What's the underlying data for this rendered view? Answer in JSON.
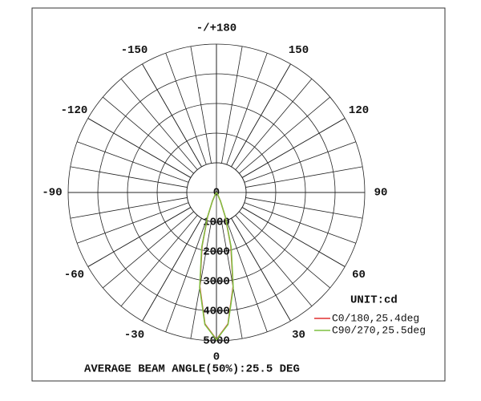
{
  "chart_data": {
    "type": "polar",
    "unit_label": "UNIT:cd",
    "footer": "AVERAGE BEAM ANGLE(50%):25.5 DEG",
    "x": [
      -40,
      -35,
      -30,
      -25,
      -20,
      -15,
      -10,
      -5,
      0,
      5,
      10,
      15,
      20,
      25,
      30,
      35,
      40
    ],
    "series": [
      {
        "name": "C0/180,25.4deg",
        "color": "#e03030",
        "values": [
          0,
          18,
          88,
          315,
          871,
          1875,
          3225,
          4449,
          4950,
          4449,
          3225,
          1875,
          871,
          315,
          88,
          18,
          0
        ]
      },
      {
        "name": "C90/270,25.5deg",
        "color": "#7fc040",
        "values": [
          0,
          20,
          95,
          330,
          900,
          1920,
          3260,
          4470,
          4960,
          4470,
          3260,
          1920,
          900,
          330,
          95,
          20,
          0
        ]
      }
    ],
    "ylim": [
      0,
      5000
    ],
    "yticks": [
      0,
      1000,
      2000,
      3000,
      4000,
      5000
    ],
    "xlim": [
      -180,
      180
    ],
    "xticks": [
      0,
      30,
      60,
      90,
      120,
      150,
      {
        "value": 180,
        "label": "-/+180"
      },
      -150,
      -120,
      -90,
      -60,
      -30
    ],
    "angle_grid_step": 10
  }
}
